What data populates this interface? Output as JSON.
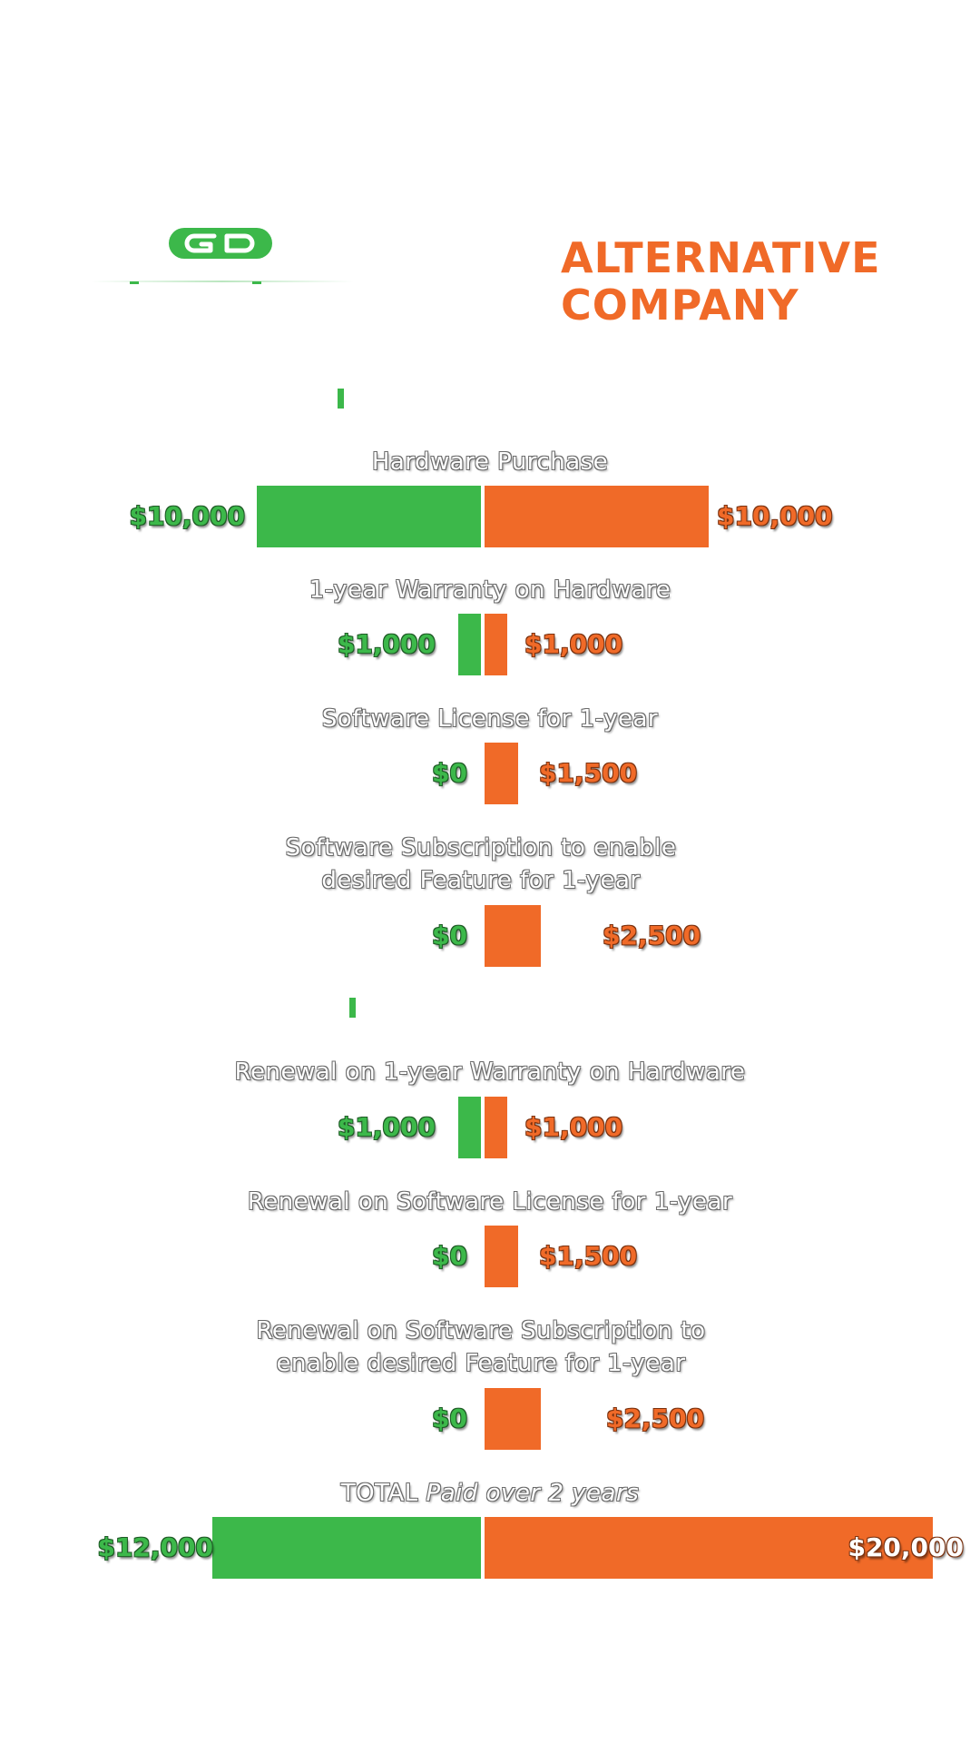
{
  "header": {
    "company_title": "ALTERNATIVE COMPANY",
    "logo_icon": "gd-logo-icon"
  },
  "colors": {
    "green": "#3cb84a",
    "orange": "#f06a28"
  },
  "chart_data": {
    "type": "bar",
    "orientation": "horizontal-diverging",
    "categories": [
      "Hardware Purchase",
      "1-year Warranty on Hardware",
      "Software License for 1-year",
      "Software Subscription to enable desired Feature  for 1-year",
      "Renewal on 1-year Warranty on Hardware",
      "Renewal on Software License for 1-year",
      "Renewal on Software Subscription to enable desired Feature for 1-year",
      "TOTAL Paid over 2 years"
    ],
    "series": [
      {
        "values": [
          10000,
          1000,
          0,
          0,
          1000,
          0,
          0,
          12000
        ],
        "labels": [
          "$10,000",
          "$1,000",
          "$0",
          "$0",
          "$1,000",
          "$0",
          "$0",
          "$12,000"
        ]
      },
      {
        "name": "ALTERNATIVE COMPANY",
        "values": [
          10000,
          1000,
          1500,
          2500,
          1000,
          1500,
          2500,
          20000
        ],
        "labels": [
          "$10,000",
          "$1,000",
          "$1,500",
          "$2,500",
          "$1,000",
          "$1,500",
          "$2,500",
          "$20,000"
        ]
      }
    ],
    "total_label": {
      "prefix": "TOTAL",
      "suffix": "Paid over 2 years"
    }
  }
}
